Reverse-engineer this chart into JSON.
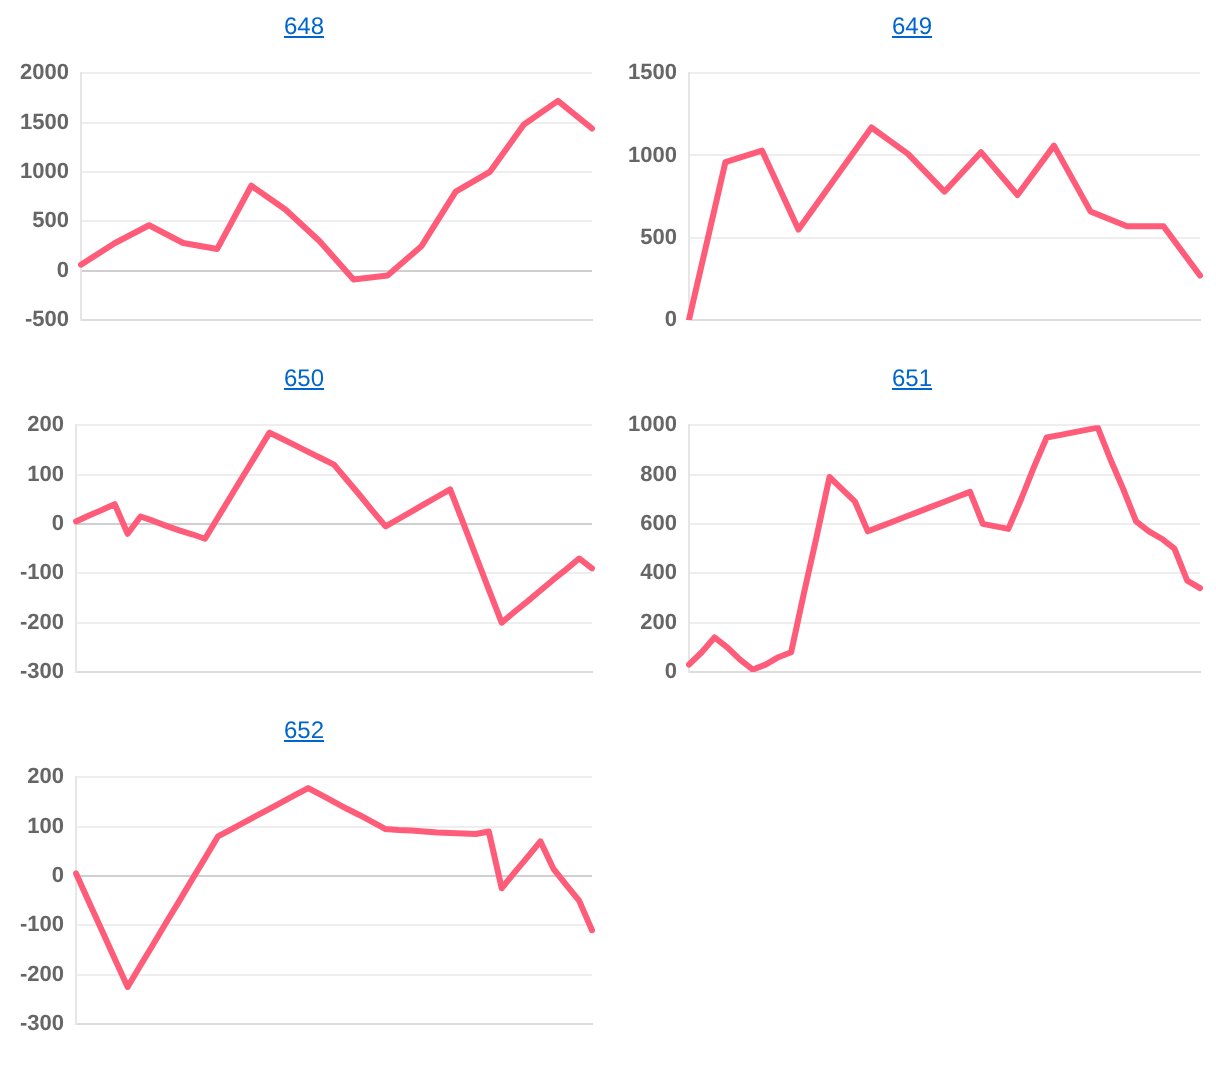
{
  "chart_data": [
    {
      "type": "line",
      "title": "648",
      "categories": [
        null,
        null,
        null,
        null,
        null,
        null,
        null,
        null,
        null,
        null,
        null,
        null,
        null,
        null,
        null,
        null
      ],
      "series": [
        {
          "color": "#ff5c7a",
          "values": [
            60,
            280,
            460,
            280,
            220,
            860,
            620,
            300,
            -90,
            -50,
            250,
            800,
            1000,
            1480,
            1720,
            1440
          ]
        }
      ],
      "ylim": [
        -500,
        2000
      ],
      "yticks": [
        -500,
        0,
        500,
        1000,
        1500,
        2000
      ],
      "grid": "y",
      "tick_labels": "y",
      "legend": false,
      "marker": "none",
      "line_style": "solid"
    },
    {
      "type": "line",
      "title": "649",
      "categories": [
        null,
        null,
        null,
        null,
        null,
        null,
        null,
        null,
        null,
        null,
        null,
        null,
        null,
        null,
        null
      ],
      "series": [
        {
          "color": "#ff5c7a",
          "values": [
            0,
            960,
            1030,
            550,
            860,
            1170,
            1010,
            780,
            1020,
            760,
            1060,
            660,
            570,
            570,
            270
          ]
        }
      ],
      "ylim": [
        0,
        1500
      ],
      "yticks": [
        0,
        500,
        1000,
        1500
      ],
      "grid": "y",
      "tick_labels": "y",
      "legend": false,
      "marker": "none",
      "line_style": "solid"
    },
    {
      "type": "line",
      "title": "650",
      "categories": [
        null,
        null,
        null,
        null,
        null,
        null,
        null,
        null,
        null,
        null,
        null,
        null,
        null,
        null,
        null,
        null,
        null,
        null,
        null,
        null,
        null,
        null,
        null,
        null,
        null,
        null,
        null,
        null,
        null,
        null,
        null,
        null,
        null,
        null,
        null,
        null,
        null,
        null,
        null,
        null,
        null
      ],
      "series": [
        {
          "color": "#ff5c7a",
          "values": [
            5,
            17,
            28,
            40,
            -20,
            15,
            6,
            -4,
            -13,
            -21,
            -30,
            13,
            56,
            99,
            142,
            185,
            172,
            159,
            146,
            133,
            120,
            89,
            58,
            26,
            -5,
            10,
            25,
            40,
            55,
            70,
            3,
            -65,
            -133,
            -200,
            -178,
            -157,
            -135,
            -113,
            -92,
            -70,
            -90
          ]
        }
      ],
      "ylim": [
        -300,
        200
      ],
      "yticks": [
        -300,
        -200,
        -100,
        0,
        100,
        200
      ],
      "grid": "y",
      "tick_labels": "y",
      "legend": false,
      "marker": "none",
      "line_style": "solid"
    },
    {
      "type": "line",
      "title": "651",
      "categories": [
        null,
        null,
        null,
        null,
        null,
        null,
        null,
        null,
        null,
        null,
        null,
        null,
        null,
        null,
        null,
        null,
        null,
        null,
        null,
        null,
        null,
        null,
        null,
        null,
        null,
        null,
        null,
        null,
        null,
        null,
        null,
        null,
        null,
        null,
        null,
        null,
        null,
        null,
        null,
        null,
        null
      ],
      "series": [
        {
          "color": "#ff5c7a",
          "values": [
            30,
            80,
            140,
            100,
            50,
            10,
            30,
            60,
            80,
            320,
            550,
            790,
            740,
            690,
            570,
            590,
            610,
            630,
            650,
            670,
            690,
            710,
            730,
            600,
            590,
            580,
            700,
            830,
            950,
            960,
            970,
            980,
            990,
            860,
            740,
            610,
            570,
            540,
            500,
            370,
            340
          ]
        }
      ],
      "ylim": [
        0,
        1000
      ],
      "yticks": [
        0,
        200,
        400,
        600,
        800,
        1000
      ],
      "grid": "y",
      "tick_labels": "y",
      "legend": false,
      "marker": "none",
      "line_style": "solid"
    },
    {
      "type": "line",
      "title": "652",
      "categories": [
        null,
        null,
        null,
        null,
        null,
        null,
        null,
        null,
        null,
        null,
        null,
        null,
        null,
        null,
        null,
        null,
        null,
        null,
        null,
        null,
        null,
        null,
        null,
        null,
        null,
        null,
        null,
        null,
        null,
        null,
        null,
        null,
        null,
        null,
        null,
        null,
        null,
        null,
        null,
        null,
        null
      ],
      "series": [
        {
          "color": "#ff5c7a",
          "values": [
            5,
            -53,
            -110,
            -168,
            -225,
            -181,
            -138,
            -94,
            -51,
            -7,
            36,
            80,
            94,
            108,
            122,
            136,
            150,
            164,
            178,
            164,
            150,
            136,
            123,
            109,
            95,
            93,
            92,
            90,
            88,
            87,
            86,
            85,
            90,
            -25,
            7,
            38,
            70,
            15,
            -18,
            -50,
            -110
          ]
        }
      ],
      "ylim": [
        -300,
        200
      ],
      "yticks": [
        -300,
        -200,
        -100,
        0,
        100,
        200
      ],
      "grid": "y",
      "tick_labels": "y",
      "legend": false,
      "marker": "none",
      "line_style": "solid"
    }
  ]
}
